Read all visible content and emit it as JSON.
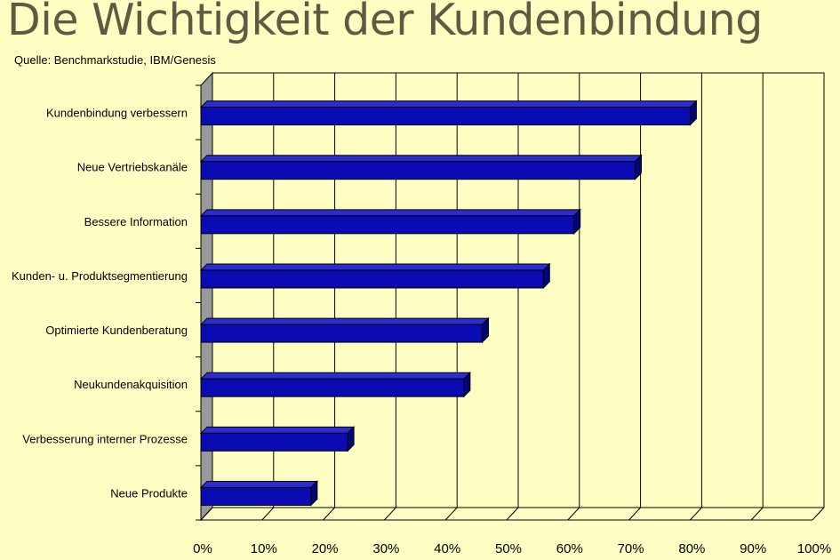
{
  "title": "Die Wichtigkeit der Kundenbindung",
  "source": "Quelle: Benchmarkstudie, IBM/Genesis",
  "colors": {
    "background": "#ffffc4",
    "bar": "#0b0bb4",
    "bar_top": "#2c2cd2",
    "bar_side": "#05057a",
    "wall": "#999999",
    "title": "#615a43"
  },
  "chart_data": {
    "type": "bar",
    "orientation": "horizontal",
    "title": "Die Wichtigkeit der Kundenbindung",
    "subtitle": "Quelle: Benchmarkstudie, IBM/Genesis",
    "categories": [
      "Kundenbindung verbessern",
      "Neue Vertriebskanäle",
      "Bessere Information",
      "Kunden- u. Produktsegmentierung",
      "Optimierte Kundenberatung",
      "Neukundenakquisition",
      "Verbesserung interner Prozesse",
      "Neue Produkte"
    ],
    "values": [
      80,
      71,
      61,
      56,
      46,
      43,
      24,
      18
    ],
    "xlim": [
      0,
      100
    ],
    "xticks": [
      "0%",
      "10%",
      "20%",
      "30%",
      "40%",
      "50%",
      "60%",
      "70%",
      "80%",
      "90%",
      "100%"
    ],
    "xlabel": "",
    "ylabel": "",
    "grid": true,
    "legend": "none"
  }
}
